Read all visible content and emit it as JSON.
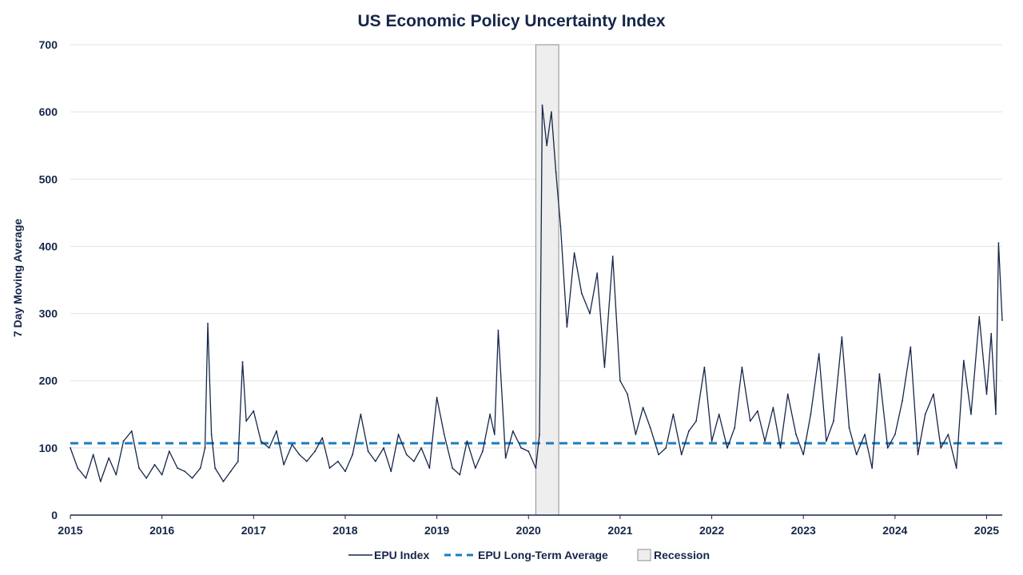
{
  "chart_data": {
    "type": "line",
    "title": "US Economic Policy Uncertainty Index",
    "xlabel": "",
    "ylabel": "7 Day Moving Average",
    "xlim": [
      2015,
      2025.17
    ],
    "ylim": [
      0,
      700
    ],
    "x_ticks": [
      "2015",
      "2016",
      "2017",
      "2018",
      "2019",
      "2020",
      "2021",
      "2022",
      "2023",
      "2024",
      "2025"
    ],
    "y_ticks": [
      "0",
      "100",
      "200",
      "300",
      "400",
      "500",
      "600",
      "700"
    ],
    "grid": true,
    "legend_position": "bottom",
    "legend": [
      "EPU Index",
      "EPU Long-Term Average",
      "Recession"
    ],
    "colors": {
      "series": "#16264a",
      "average": "#1a7cc1",
      "recession_fill": "#eeeeee",
      "recession_edge": "#8c8c8c",
      "grid": "#e2e2e2"
    },
    "series": [
      {
        "name": "EPU Index",
        "x": [
          2015.0,
          2015.08,
          2015.17,
          2015.25,
          2015.33,
          2015.42,
          2015.5,
          2015.58,
          2015.67,
          2015.75,
          2015.83,
          2015.92,
          2016.0,
          2016.08,
          2016.17,
          2016.25,
          2016.33,
          2016.42,
          2016.47,
          2016.5,
          2016.54,
          2016.58,
          2016.67,
          2016.75,
          2016.83,
          2016.88,
          2016.92,
          2017.0,
          2017.08,
          2017.17,
          2017.25,
          2017.33,
          2017.42,
          2017.5,
          2017.58,
          2017.67,
          2017.75,
          2017.83,
          2017.92,
          2018.0,
          2018.08,
          2018.17,
          2018.25,
          2018.33,
          2018.42,
          2018.5,
          2018.58,
          2018.67,
          2018.75,
          2018.83,
          2018.92,
          2019.0,
          2019.08,
          2019.17,
          2019.25,
          2019.33,
          2019.42,
          2019.5,
          2019.58,
          2019.63,
          2019.67,
          2019.75,
          2019.83,
          2019.92,
          2020.0,
          2020.08,
          2020.12,
          2020.15,
          2020.2,
          2020.25,
          2020.3,
          2020.35,
          2020.42,
          2020.5,
          2020.58,
          2020.67,
          2020.75,
          2020.83,
          2020.92,
          2021.0,
          2021.08,
          2021.17,
          2021.25,
          2021.33,
          2021.42,
          2021.5,
          2021.58,
          2021.67,
          2021.75,
          2021.83,
          2021.92,
          2022.0,
          2022.08,
          2022.17,
          2022.25,
          2022.33,
          2022.42,
          2022.5,
          2022.58,
          2022.67,
          2022.75,
          2022.83,
          2022.92,
          2023.0,
          2023.08,
          2023.17,
          2023.25,
          2023.33,
          2023.42,
          2023.5,
          2023.58,
          2023.67,
          2023.75,
          2023.83,
          2023.92,
          2024.0,
          2024.08,
          2024.17,
          2024.25,
          2024.33,
          2024.42,
          2024.5,
          2024.58,
          2024.67,
          2024.75,
          2024.83,
          2024.92,
          2025.0,
          2025.05,
          2025.1,
          2025.13,
          2025.17
        ],
        "values": [
          100,
          70,
          55,
          90,
          50,
          85,
          60,
          110,
          125,
          70,
          55,
          75,
          60,
          95,
          70,
          65,
          55,
          70,
          100,
          285,
          120,
          70,
          50,
          65,
          80,
          228,
          140,
          155,
          110,
          100,
          125,
          75,
          105,
          90,
          80,
          95,
          115,
          70,
          80,
          65,
          90,
          150,
          95,
          80,
          100,
          65,
          120,
          90,
          80,
          100,
          70,
          175,
          120,
          70,
          60,
          110,
          70,
          95,
          150,
          120,
          275,
          85,
          125,
          100,
          95,
          70,
          120,
          610,
          550,
          600,
          510,
          430,
          280,
          390,
          330,
          300,
          360,
          220,
          385,
          200,
          180,
          120,
          160,
          130,
          90,
          100,
          150,
          90,
          125,
          140,
          220,
          110,
          150,
          100,
          130,
          220,
          140,
          155,
          110,
          160,
          100,
          180,
          120,
          90,
          150,
          240,
          110,
          140,
          265,
          130,
          90,
          120,
          70,
          210,
          100,
          120,
          170,
          250,
          90,
          150,
          180,
          100,
          120,
          70,
          230,
          150,
          295,
          180,
          270,
          150,
          405,
          290
        ]
      }
    ],
    "reference_line": {
      "name": "EPU Long-Term Average",
      "value": 107
    },
    "shaded_regions": [
      {
        "name": "Recession",
        "x_start": 2020.08,
        "x_end": 2020.33
      }
    ]
  }
}
